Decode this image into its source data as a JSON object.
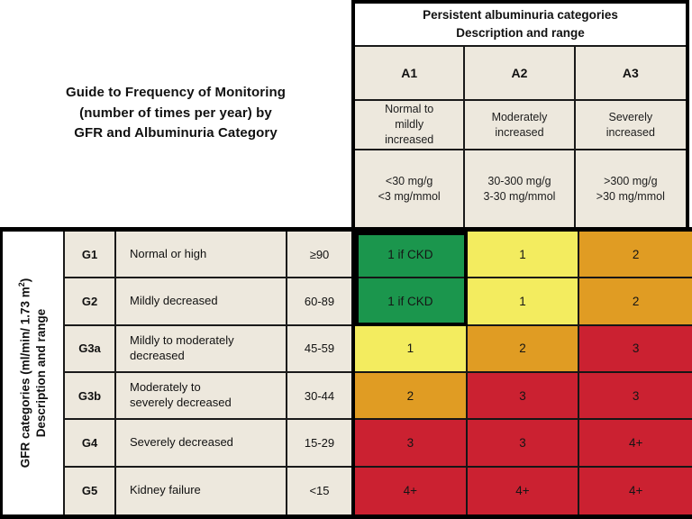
{
  "left_title": "Guide to Frequency of Monitoring\n(number of times per year) by\nGFR and Albuminuria Category",
  "albuminuria": {
    "header": "Persistent albuminuria categories\nDescription and range",
    "categories": [
      {
        "code": "A1",
        "description": "Normal to\nmildly\nincreased",
        "range": "<30 mg/g\n<3 mg/mmol"
      },
      {
        "code": "A2",
        "description": "Moderately\nincreased",
        "range": "30-300 mg/g\n3-30 mg/mmol"
      },
      {
        "code": "A3",
        "description": "Severely\nincreased",
        "range": ">300 mg/g\n>30 mg/mmol"
      }
    ]
  },
  "gfr_axis": {
    "line1_pre": "GFR categories (ml/min/ 1.73 m",
    "sup": "2",
    "line1_post": ")",
    "line2": "Description and range"
  },
  "grid": {
    "rows": [
      {
        "code": "G1",
        "desc": "Normal or high",
        "range": "≥90",
        "c1": {
          "t": "1 if CKD",
          "bg": "#1B964D"
        },
        "c2": {
          "t": "1",
          "bg": "#F3EC5F"
        },
        "c3": {
          "t": "2",
          "bg": "#E09C23"
        }
      },
      {
        "code": "G2",
        "desc": "Mildly decreased",
        "range": "60-89",
        "c1": {
          "t": "1 if CKD",
          "bg": "#1B964D"
        },
        "c2": {
          "t": "1",
          "bg": "#F3EC5F"
        },
        "c3": {
          "t": "2",
          "bg": "#E09C23"
        }
      },
      {
        "code": "G3a",
        "desc": "Mildly to moderately\ndecreased",
        "range": "45-59",
        "c1": {
          "t": "1",
          "bg": "#F3EC5F"
        },
        "c2": {
          "t": "2",
          "bg": "#E09C23"
        },
        "c3": {
          "t": "3",
          "bg": "#CB2131"
        }
      },
      {
        "code": "G3b",
        "desc": "Moderately to\nseverely decreased",
        "range": "30-44",
        "c1": {
          "t": "2",
          "bg": "#E09C23"
        },
        "c2": {
          "t": "3",
          "bg": "#CB2131"
        },
        "c3": {
          "t": "3",
          "bg": "#CB2131"
        }
      },
      {
        "code": "G4",
        "desc": "Severely decreased",
        "range": "15-29",
        "c1": {
          "t": "3",
          "bg": "#CB2131"
        },
        "c2": {
          "t": "3",
          "bg": "#CB2131"
        },
        "c3": {
          "t": "4+",
          "bg": "#CB2131"
        }
      },
      {
        "code": "G5",
        "desc": "Kidney failure",
        "range": "<15",
        "c1": {
          "t": "4+",
          "bg": "#CB2131"
        },
        "c2": {
          "t": "4+",
          "bg": "#CB2131"
        },
        "c3": {
          "t": "4+",
          "bg": "#CB2131"
        }
      }
    ]
  },
  "colors": {
    "green": "#1B964D",
    "yellow": "#F3EC5F",
    "orange": "#E09C23",
    "red": "#CB2131",
    "beige": "#EDE8DD",
    "border": "#000000"
  },
  "chart_data": {
    "type": "heatmap",
    "title": "Guide to Frequency of Monitoring (number of times per year) by GFR and Albuminuria Category",
    "columns_axis": {
      "label": "Persistent albuminuria categories - Description and range",
      "categories": [
        {
          "code": "A1",
          "description": "Normal to mildly increased",
          "range": "<30 mg/g; <3 mg/mmol"
        },
        {
          "code": "A2",
          "description": "Moderately increased",
          "range": "30-300 mg/g; 3-30 mg/mmol"
        },
        {
          "code": "A3",
          "description": "Severely increased",
          "range": ">300 mg/g; >30 mg/mmol"
        }
      ]
    },
    "rows_axis": {
      "label": "GFR categories (ml/min/ 1.73 m2) - Description and range",
      "categories": [
        {
          "code": "G1",
          "description": "Normal or high",
          "range": "≥90"
        },
        {
          "code": "G2",
          "description": "Mildly decreased",
          "range": "60-89"
        },
        {
          "code": "G3a",
          "description": "Mildly to moderately decreased",
          "range": "45-59"
        },
        {
          "code": "G3b",
          "description": "Moderately to severely decreased",
          "range": "30-44"
        },
        {
          "code": "G4",
          "description": "Severely decreased",
          "range": "15-29"
        },
        {
          "code": "G5",
          "description": "Kidney failure",
          "range": "<15"
        }
      ]
    },
    "values": [
      [
        "1 if CKD",
        "1",
        "2"
      ],
      [
        "1 if CKD",
        "1",
        "2"
      ],
      [
        "1",
        "2",
        "3"
      ],
      [
        "2",
        "3",
        "3"
      ],
      [
        "3",
        "3",
        "4+"
      ],
      [
        "4+",
        "4+",
        "4+"
      ]
    ],
    "cell_colors": [
      [
        "green",
        "yellow",
        "orange"
      ],
      [
        "green",
        "yellow",
        "orange"
      ],
      [
        "yellow",
        "orange",
        "red"
      ],
      [
        "orange",
        "red",
        "red"
      ],
      [
        "red",
        "red",
        "red"
      ],
      [
        "red",
        "red",
        "red"
      ]
    ],
    "palette": {
      "green": "#1B964D",
      "yellow": "#F3EC5F",
      "orange": "#E09C23",
      "red": "#CB2131"
    },
    "notes": "Green cells (G1-G2 x A1) are outlined with a thick black border; grid lines on; no legend."
  }
}
